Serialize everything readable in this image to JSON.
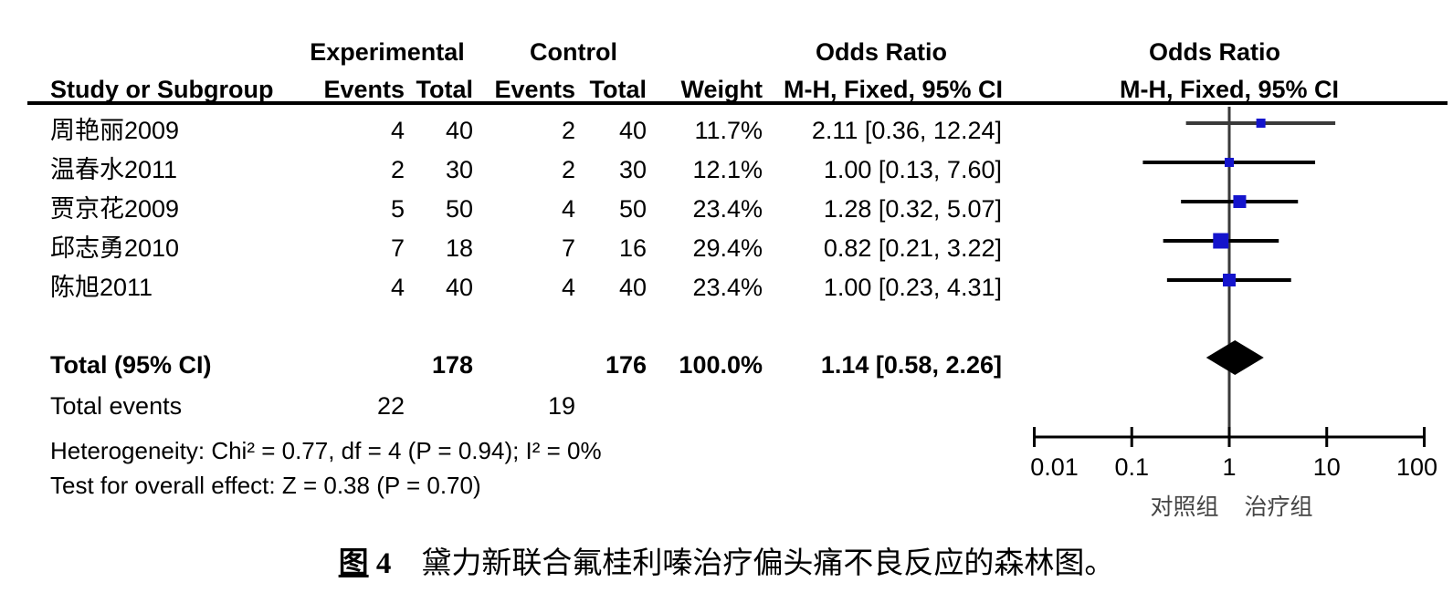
{
  "header": {
    "col_study": "Study or Subgroup",
    "group_experimental": "Experimental",
    "group_control": "Control",
    "col_events_exp": "Events",
    "col_total_exp": "Total",
    "col_events_ctrl": "Events",
    "col_total_ctrl": "Total",
    "col_weight": "Weight",
    "or_title_left": "Odds Ratio",
    "or_subtitle_left": "M-H, Fixed, 95% CI",
    "or_title_right": "Odds Ratio",
    "or_subtitle_right": "M-H, Fixed, 95% CI"
  },
  "chart_data": {
    "type": "forest",
    "scale": "log10",
    "effect_measure": "Odds Ratio, M-H, Fixed, 95% CI",
    "x_ticks": [
      0.01,
      0.1,
      1,
      10,
      100
    ],
    "x_tick_labels": [
      "0.01",
      "0.1",
      "1",
      "10",
      "100"
    ],
    "axis_label_left": "对照组",
    "axis_label_right": "治疗组",
    "studies": [
      {
        "name": "周艳丽2009",
        "exp_events": 4,
        "exp_total": 40,
        "ctrl_events": 2,
        "ctrl_total": 40,
        "weight": "11.7%",
        "weight_val": 11.7,
        "or": 2.11,
        "ci_low": 0.36,
        "ci_high": 12.24,
        "or_label": "2.11 [0.36, 12.24]",
        "ci_color": "#3A3A3A"
      },
      {
        "name": "温春水2011",
        "exp_events": 2,
        "exp_total": 30,
        "ctrl_events": 2,
        "ctrl_total": 30,
        "weight": "12.1%",
        "weight_val": 12.1,
        "or": 1.0,
        "ci_low": 0.13,
        "ci_high": 7.6,
        "or_label": "1.00 [0.13, 7.60]",
        "ci_color": "#000000"
      },
      {
        "name": "贾京花2009",
        "exp_events": 5,
        "exp_total": 50,
        "ctrl_events": 4,
        "ctrl_total": 50,
        "weight": "23.4%",
        "weight_val": 23.4,
        "or": 1.28,
        "ci_low": 0.32,
        "ci_high": 5.07,
        "or_label": "1.28 [0.32, 5.07]",
        "ci_color": "#000000"
      },
      {
        "name": "邱志勇2010",
        "exp_events": 7,
        "exp_total": 18,
        "ctrl_events": 7,
        "ctrl_total": 16,
        "weight": "29.4%",
        "weight_val": 29.4,
        "or": 0.82,
        "ci_low": 0.21,
        "ci_high": 3.22,
        "or_label": "0.82 [0.21, 3.22]",
        "ci_color": "#000000"
      },
      {
        "name": "陈旭2011",
        "exp_events": 4,
        "exp_total": 40,
        "ctrl_events": 4,
        "ctrl_total": 40,
        "weight": "23.4%",
        "weight_val": 23.4,
        "or": 1.0,
        "ci_low": 0.23,
        "ci_high": 4.31,
        "or_label": "1.00 [0.23, 4.31]",
        "ci_color": "#000000"
      }
    ],
    "total": {
      "label": "Total (95% CI)",
      "exp_total": "178",
      "ctrl_total": "176",
      "weight": "100.0%",
      "or": 1.14,
      "ci_low": 0.58,
      "ci_high": 2.26,
      "or_label": "1.14 [0.58, 2.26]"
    },
    "total_events": {
      "label": "Total events",
      "experimental": "22",
      "control": "19"
    },
    "heterogeneity": "Heterogeneity: Chi² = 0.77, df = 4 (P = 0.94); I² = 0%",
    "overall_effect": "Test for overall effect: Z = 0.38 (P = 0.70)"
  },
  "caption": {
    "fig": "图",
    "num": " 4",
    "gap": "　",
    "text": "黛力新联合氟桂利嗪治疗偏头痛不良反应的森林图。"
  },
  "colors": {
    "marker": "#1414CC",
    "diamond": "#000000",
    "center_line": "#3A3A3A",
    "axis": "#000000",
    "rule": "#000000",
    "text": "#000000"
  }
}
